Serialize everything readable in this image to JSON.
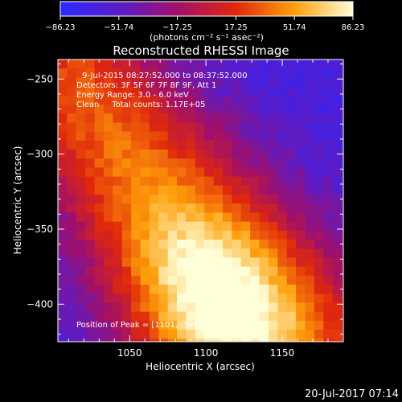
{
  "colorbar": {
    "ticks": [
      "-86.23",
      "-51.74",
      "-17.25",
      "17.25",
      "51.74",
      "86.23"
    ],
    "unit_label": "(photons cm⁻² s⁻¹ asec⁻²)",
    "range": [
      -86.23,
      86.23
    ]
  },
  "plot": {
    "title": "Reconstructed RHESSI Image",
    "info_lines": [
      "9-Jul-2015 08:27:52.000 to 08:37:52.000",
      "Detectors: 3F 5F 6F 7F 8F 9F, Att 1",
      "Energy Range: 3.0 - 6.0 keV",
      "Clean     Total counts: 1.17E+05"
    ],
    "peak_label": "Position of Peak = [1101, -394]",
    "timestamp": "20-Jul-2017 07:14"
  },
  "chart_data": {
    "type": "heatmap",
    "title": "Reconstructed RHESSI Image",
    "xlabel": "Heliocentric X (arcsec)",
    "ylabel": "Heliocentric Y (arcsec)",
    "xlim": [
      1003,
      1190
    ],
    "ylim": [
      -425,
      -237
    ],
    "xticks": [
      1050,
      1100,
      1150
    ],
    "xtick_labels": [
      "1050",
      "1100",
      "1150"
    ],
    "yticks": [
      -250,
      -300,
      -350,
      -400
    ],
    "ytick_labels": [
      "-250",
      "-300",
      "-350",
      "-400"
    ],
    "colormap": "rainbow-like hot (blue→purple→red→orange→yellow→white)",
    "zlim": [
      -86.23,
      86.23
    ],
    "peak": [
      1101,
      -394
    ]
  }
}
